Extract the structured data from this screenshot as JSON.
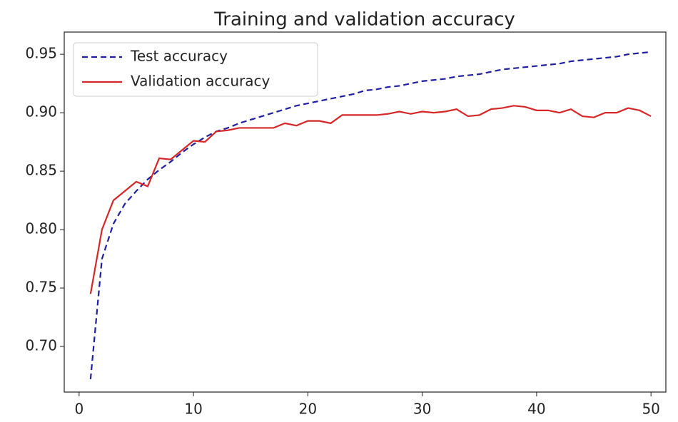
{
  "chart_data": {
    "type": "line",
    "title": "Training and validation accuracy",
    "x": [
      1,
      2,
      3,
      4,
      5,
      6,
      7,
      8,
      9,
      10,
      11,
      12,
      13,
      14,
      15,
      16,
      17,
      18,
      19,
      20,
      21,
      22,
      23,
      24,
      25,
      26,
      27,
      28,
      29,
      30,
      31,
      32,
      33,
      34,
      35,
      36,
      37,
      38,
      39,
      40,
      41,
      42,
      43,
      44,
      45,
      46,
      47,
      48,
      49,
      50
    ],
    "series": [
      {
        "name": "Test accuracy",
        "color": "#1f1f9f",
        "linestyle": "dashed",
        "values": [
          0.672,
          0.775,
          0.805,
          0.822,
          0.833,
          0.843,
          0.851,
          0.858,
          0.866,
          0.873,
          0.879,
          0.884,
          0.887,
          0.891,
          0.894,
          0.897,
          0.9,
          0.903,
          0.906,
          0.908,
          0.91,
          0.912,
          0.914,
          0.916,
          0.919,
          0.92,
          0.922,
          0.923,
          0.925,
          0.927,
          0.928,
          0.929,
          0.931,
          0.932,
          0.933,
          0.935,
          0.937,
          0.938,
          0.939,
          0.94,
          0.941,
          0.942,
          0.944,
          0.945,
          0.946,
          0.947,
          0.948,
          0.95,
          0.951,
          0.952
        ]
      },
      {
        "name": "Validation accuracy",
        "color": "#d62728",
        "linestyle": "solid",
        "values": [
          0.745,
          0.8,
          0.825,
          0.833,
          0.841,
          0.837,
          0.861,
          0.86,
          0.868,
          0.876,
          0.875,
          0.884,
          0.885,
          0.887,
          0.887,
          0.887,
          0.887,
          0.891,
          0.889,
          0.893,
          0.893,
          0.891,
          0.898,
          0.898,
          0.898,
          0.898,
          0.899,
          0.901,
          0.899,
          0.901,
          0.9,
          0.901,
          0.903,
          0.897,
          0.898,
          0.903,
          0.904,
          0.906,
          0.905,
          0.902,
          0.902,
          0.9,
          0.903,
          0.897,
          0.896,
          0.9,
          0.9,
          0.904,
          0.902,
          0.897
        ]
      }
    ],
    "xlim": [
      -1.3,
      51.3
    ],
    "xticks": [
      0,
      10,
      20,
      30,
      40,
      50
    ],
    "ylim": [
      0.661,
      0.969
    ],
    "yticks": [
      {
        "value": 0.7,
        "label": "0.70"
      },
      0.75,
      {
        "value": 0.8,
        "label": "0.80"
      },
      0.85,
      {
        "value": 0.9,
        "label": "0.90"
      },
      0.95
    ],
    "grid": false,
    "legend": "upper left"
  }
}
